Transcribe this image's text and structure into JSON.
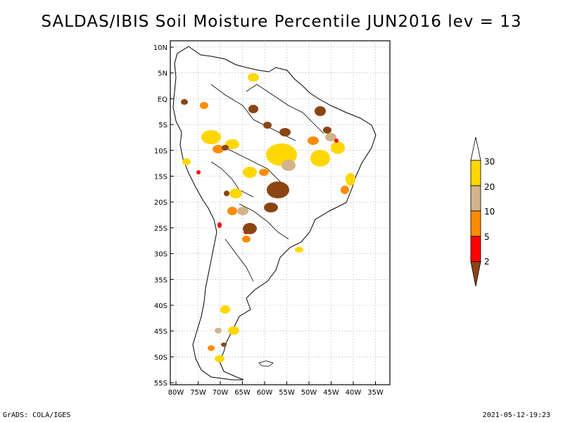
{
  "title": "SALDAS/IBIS Soil Moisture Percentile JUN2016 lev = 13",
  "footer_left": "GrADS: COLA/IGES",
  "footer_right": "2021-05-12-19:23",
  "map": {
    "lat_labels": [
      "10N",
      "5N",
      "EQ",
      "5S",
      "10S",
      "15S",
      "20S",
      "25S",
      "30S",
      "35S",
      "40S",
      "45S",
      "50S",
      "55S"
    ],
    "lon_labels": [
      "80W",
      "75W",
      "70W",
      "65W",
      "60W",
      "55W",
      "50W",
      "45W",
      "40W",
      "35W"
    ],
    "region": "South America"
  },
  "colorbar": {
    "labels": [
      "2",
      "5",
      "10",
      "20",
      "30"
    ],
    "colors": {
      "lt2": "#8b4513",
      "2_5": "#ff0000",
      "5_10": "#ff8c00",
      "10_20": "#d2b48c",
      "20_30": "#ffd700",
      "gt30": "#ffffff"
    }
  }
}
